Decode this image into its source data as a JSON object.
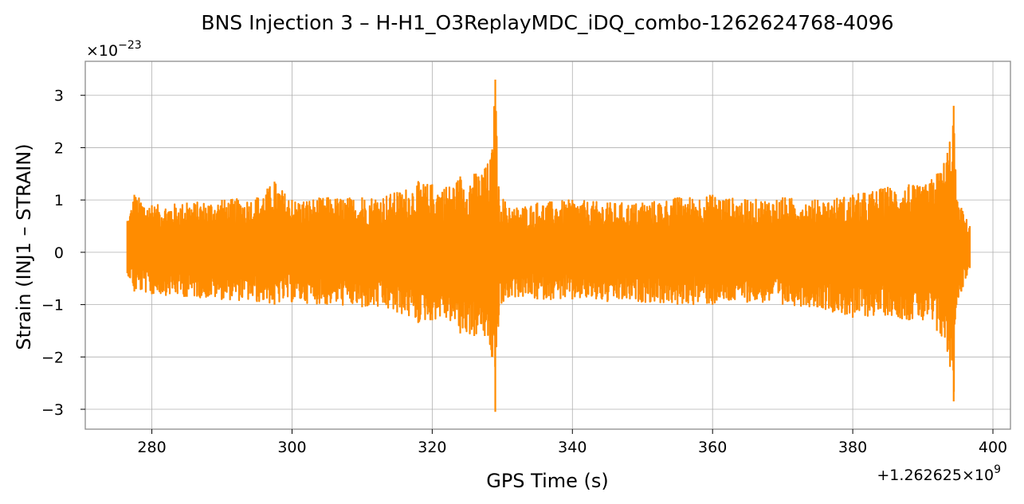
{
  "chart_data": {
    "type": "line",
    "title": "BNS Injection 3 – H-H1_O3ReplayMDC_iDQ_combo-1262624768-4096",
    "xlabel": "GPS Time (s)",
    "ylabel": "Strain (INJ1 – STRAIN)",
    "x_offset_text": "+1.262625×10",
    "x_offset_exp": "9",
    "y_scale_text": "×10",
    "y_scale_exp": "−23",
    "xlim": [
      270.5,
      402.5
    ],
    "ylim": [
      -3.38,
      3.65
    ],
    "x_ticks": [
      280,
      300,
      320,
      340,
      360,
      380,
      400
    ],
    "y_ticks": [
      3,
      2,
      1,
      0,
      -1,
      -2,
      -3
    ],
    "x_tick_labels": [
      "280",
      "300",
      "320",
      "340",
      "360",
      "380",
      "400"
    ],
    "y_tick_labels": [
      "3",
      "2",
      "1",
      "0",
      "−1",
      "−2",
      "−3"
    ],
    "grid": true,
    "legend": "none",
    "series": [
      {
        "color": "#ff8c00",
        "envelope": {
          "x": [
            276.5,
            277.5,
            280,
            285,
            290,
            295,
            297.5,
            300,
            305,
            310,
            315,
            318,
            320,
            322,
            324,
            326,
            327.5,
            328.5,
            329.0,
            329.5,
            331,
            335,
            340,
            345,
            350,
            355,
            360,
            365,
            370,
            375,
            380,
            385,
            388,
            390,
            392,
            393.5,
            394.4,
            394.8,
            395.5,
            396.7
          ],
          "upper": [
            0.6,
            1.1,
            0.9,
            0.95,
            1.0,
            1.05,
            1.35,
            1.0,
            1.05,
            1.05,
            1.15,
            1.35,
            1.3,
            1.25,
            1.45,
            1.5,
            1.6,
            1.9,
            3.3,
            1.2,
            0.85,
            0.95,
            1.0,
            0.95,
            0.95,
            1.05,
            1.1,
            1.0,
            1.05,
            1.0,
            1.1,
            1.25,
            1.3,
            1.25,
            1.5,
            1.9,
            2.8,
            1.0,
            0.85,
            0.5
          ],
          "lower": [
            -0.4,
            -0.75,
            -0.8,
            -0.85,
            -0.9,
            -0.95,
            -1.0,
            -0.95,
            -1.0,
            -1.05,
            -1.15,
            -1.35,
            -1.3,
            -1.25,
            -1.55,
            -1.6,
            -1.6,
            -2.0,
            -3.05,
            -1.2,
            -0.85,
            -0.9,
            -0.9,
            -0.95,
            -0.95,
            -1.0,
            -1.0,
            -0.95,
            -1.0,
            -1.05,
            -1.25,
            -1.2,
            -1.3,
            -1.3,
            -1.5,
            -1.9,
            -2.85,
            -1.0,
            -0.75,
            -0.3
          ]
        }
      }
    ]
  }
}
